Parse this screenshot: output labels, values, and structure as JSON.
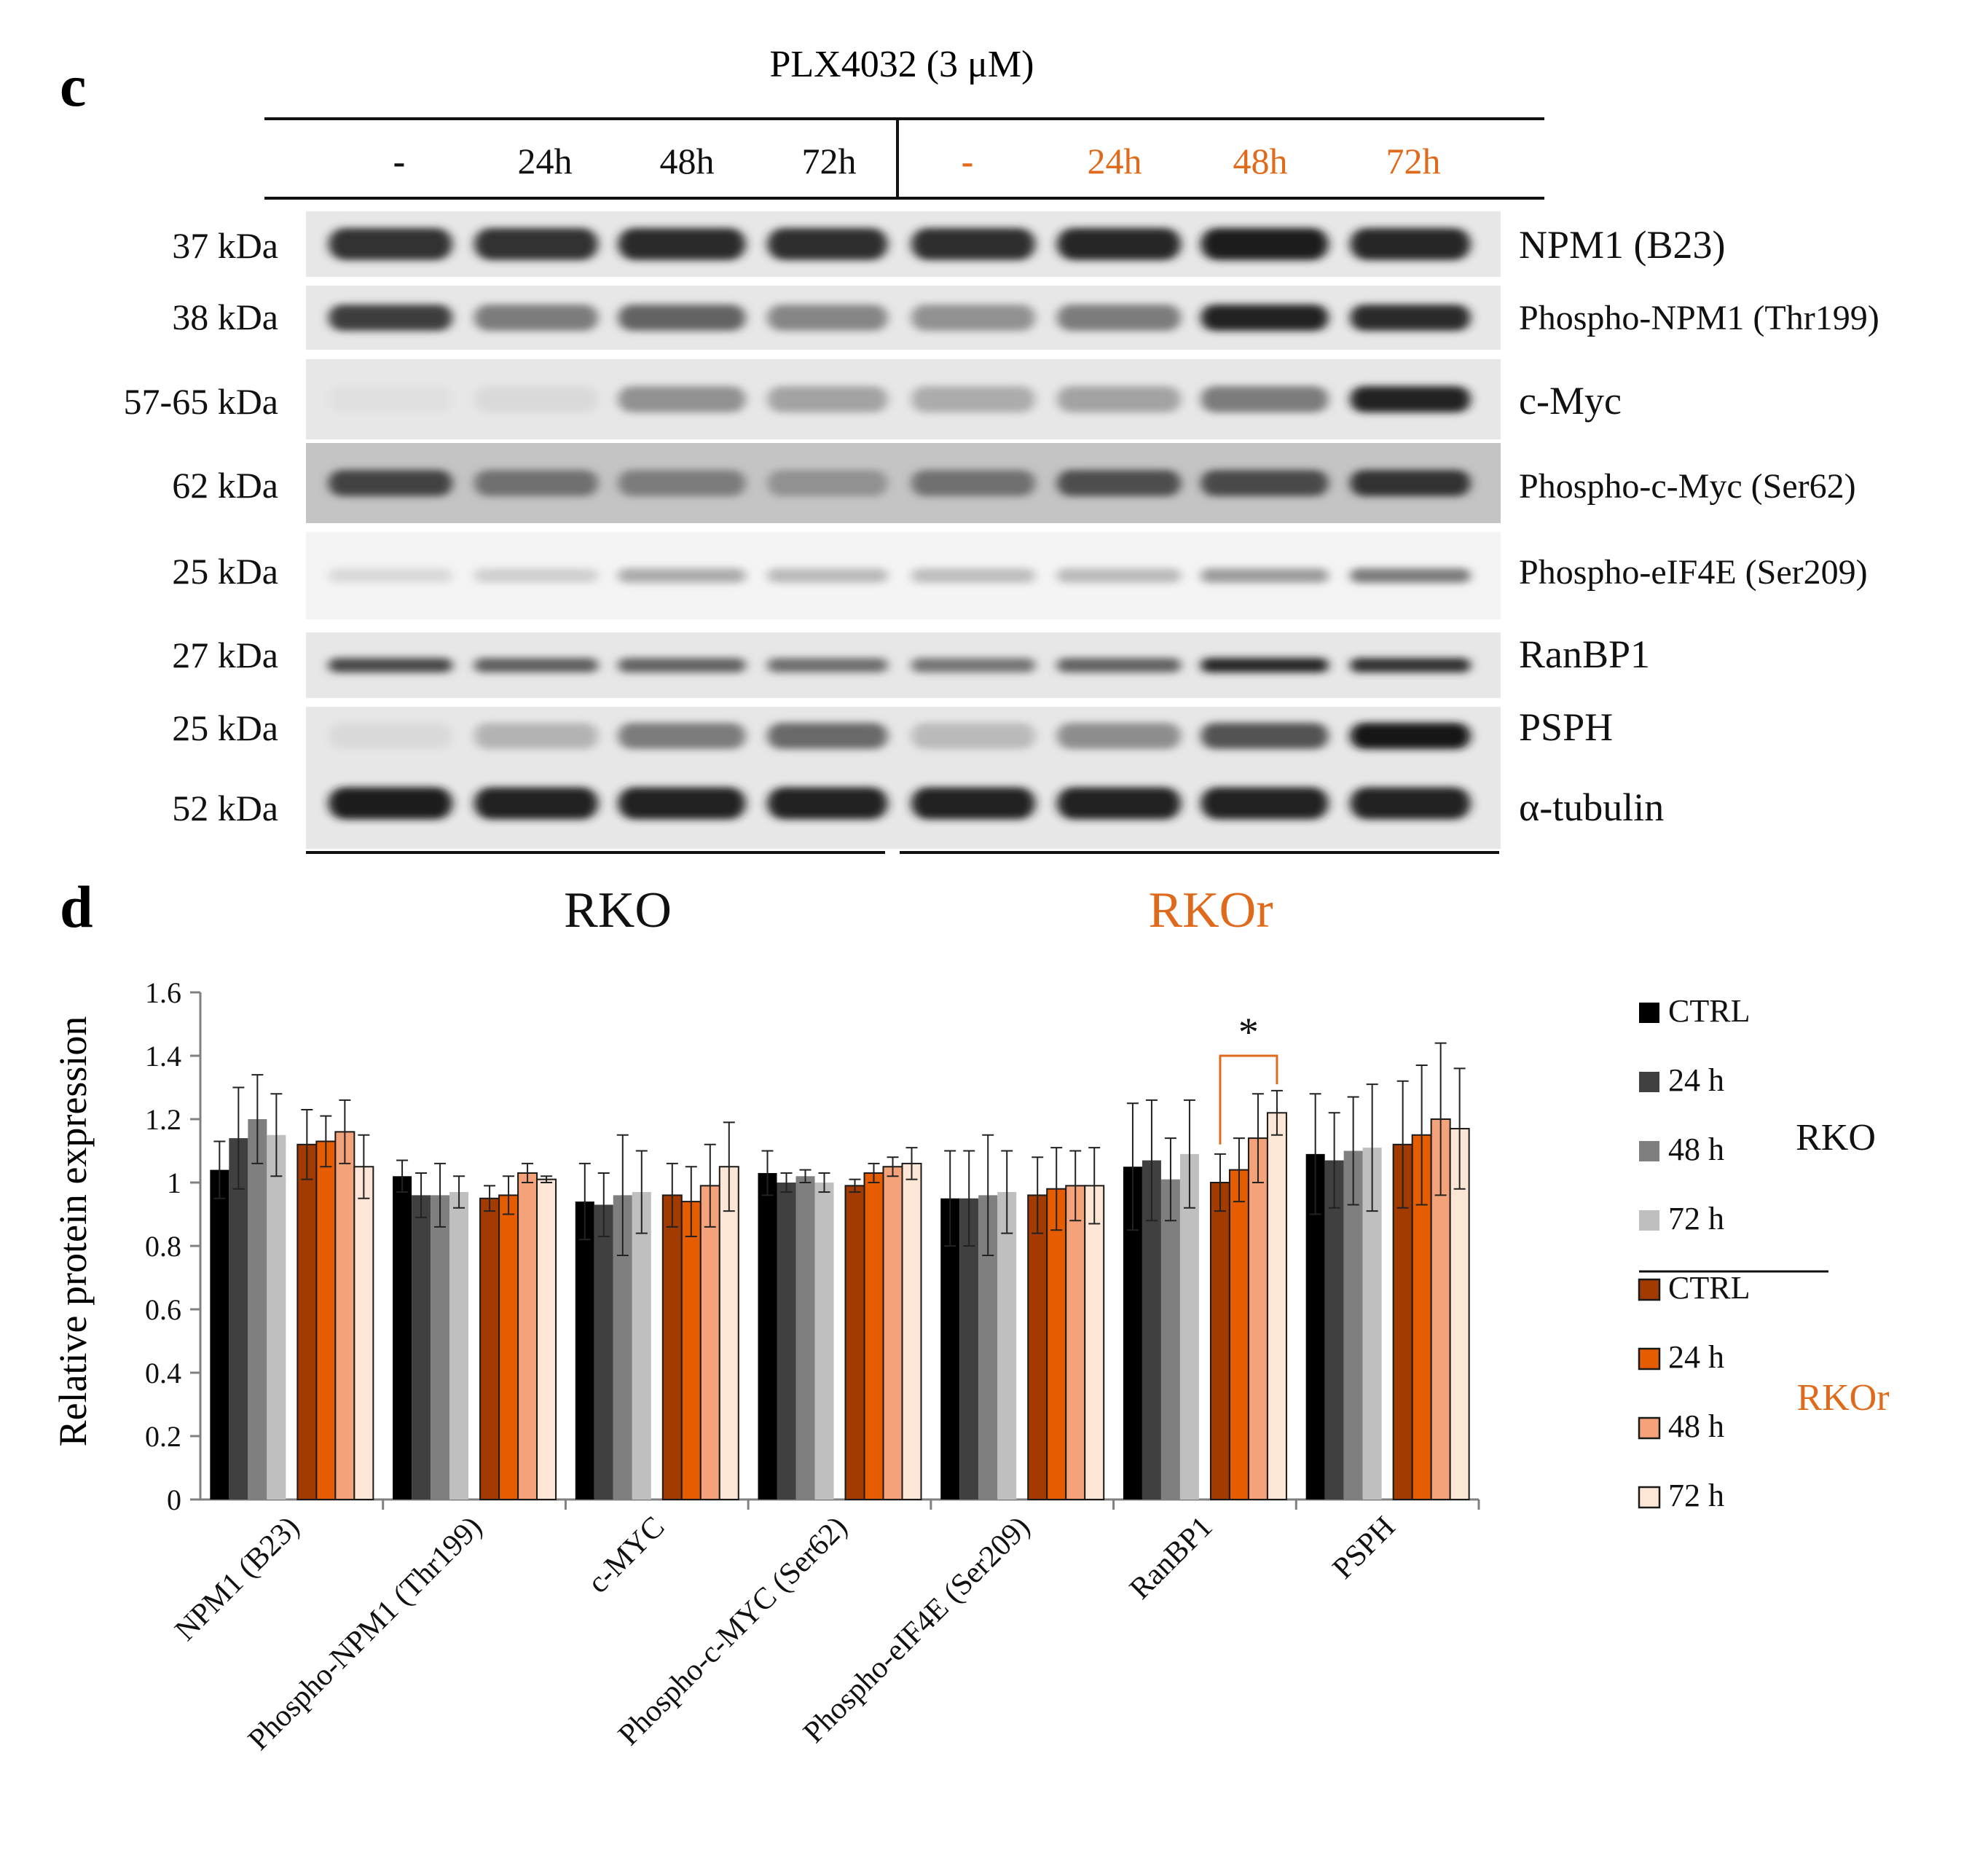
{
  "panel_c": {
    "label": "c",
    "treatment": "PLX4032 (3 μM)",
    "lane_labels_rko": [
      "-",
      "24h",
      "48h",
      "72h"
    ],
    "lane_labels_rkor": [
      "-",
      "24h",
      "48h",
      "72h"
    ],
    "blots": [
      {
        "size": "37 kDa",
        "protein": "NPM1 (B23)",
        "intensity": [
          0.82,
          0.82,
          0.86,
          0.84,
          0.84,
          0.88,
          0.92,
          0.88
        ],
        "band": "dense"
      },
      {
        "size": "38 kDa",
        "protein": "Phospho-NPM1 (Thr199)",
        "intensity": [
          0.78,
          0.5,
          0.6,
          0.45,
          0.4,
          0.5,
          0.9,
          0.85
        ],
        "band": "medium"
      },
      {
        "size": "57-65 kDa",
        "protein": "c-Myc",
        "intensity": [
          0.05,
          0.08,
          0.4,
          0.32,
          0.28,
          0.32,
          0.5,
          0.9
        ],
        "band": "medium"
      },
      {
        "size": "62 kDa",
        "protein": "Phospho-c-Myc  (Ser62)",
        "intensity": [
          0.75,
          0.55,
          0.5,
          0.4,
          0.55,
          0.7,
          0.72,
          0.82
        ],
        "band": "dark-bg"
      },
      {
        "size": "25 kDa",
        "protein": "Phospho-eIF4E (Ser209)",
        "intensity": [
          0.08,
          0.12,
          0.28,
          0.22,
          0.2,
          0.22,
          0.35,
          0.5
        ],
        "band": "thin"
      },
      {
        "size": "27 kDa",
        "protein": "RanBP1",
        "intensity": [
          0.72,
          0.62,
          0.6,
          0.55,
          0.52,
          0.6,
          0.88,
          0.82
        ],
        "band": "thin-dark"
      },
      {
        "size": "25 kDa",
        "protein": "PSPH",
        "intensity": [
          0.08,
          0.25,
          0.5,
          0.58,
          0.22,
          0.42,
          0.68,
          0.95
        ],
        "band": "medium"
      },
      {
        "size": "52 kDa",
        "protein": "α-tubulin",
        "intensity": [
          0.92,
          0.9,
          0.9,
          0.9,
          0.9,
          0.9,
          0.9,
          0.9
        ],
        "band": "dense"
      }
    ],
    "cell_line_rko": "RKO",
    "cell_line_rkor": "RKOr"
  },
  "panel_d": {
    "label": "d"
  },
  "chart_data": {
    "type": "bar",
    "title": "",
    "xlabel": "",
    "ylabel": "Relative protein expression",
    "ylim": [
      0,
      1.6
    ],
    "yticks": [
      "0",
      "0.2",
      "0.4",
      "0.6",
      "0.8",
      "1",
      "1.2",
      "1.4",
      "1.6"
    ],
    "categories": [
      "NPM1 (B23)",
      "Phospho-NPM1 (Thr199)",
      "c-MYC",
      "Phospho-c-MYC (Ser62)",
      "Phospho-eIF4E (Ser209)",
      "RanBP1",
      "PSPH"
    ],
    "series": [
      {
        "name": "CTRL",
        "group": "RKO",
        "color": "#000000",
        "values": [
          1.04,
          1.02,
          0.94,
          1.03,
          0.95,
          1.05,
          1.09
        ],
        "errors": [
          0.09,
          0.05,
          0.12,
          0.07,
          0.15,
          0.2,
          0.19
        ]
      },
      {
        "name": "24 h",
        "group": "RKO",
        "color": "#404040",
        "values": [
          1.14,
          0.96,
          0.93,
          1.0,
          0.95,
          1.07,
          1.07
        ],
        "errors": [
          0.16,
          0.07,
          0.1,
          0.03,
          0.15,
          0.19,
          0.15
        ]
      },
      {
        "name": "48 h",
        "group": "RKO",
        "color": "#7f7f7f",
        "values": [
          1.2,
          0.96,
          0.96,
          1.02,
          0.96,
          1.01,
          1.1
        ],
        "errors": [
          0.14,
          0.1,
          0.19,
          0.02,
          0.19,
          0.13,
          0.17
        ]
      },
      {
        "name": "72 h",
        "group": "RKO",
        "color": "#bfbfbf",
        "values": [
          1.15,
          0.97,
          0.97,
          1.0,
          0.97,
          1.09,
          1.11
        ],
        "errors": [
          0.13,
          0.05,
          0.13,
          0.03,
          0.13,
          0.17,
          0.2
        ]
      },
      {
        "name": "CTRL",
        "group": "RKOr",
        "color": "#a33a00",
        "values": [
          1.12,
          0.95,
          0.96,
          0.99,
          0.96,
          1.0,
          1.12
        ],
        "errors": [
          0.11,
          0.04,
          0.1,
          0.02,
          0.12,
          0.09,
          0.2
        ]
      },
      {
        "name": "24 h",
        "group": "RKOr",
        "color": "#e65c00",
        "values": [
          1.13,
          0.96,
          0.94,
          1.03,
          0.98,
          1.04,
          1.15
        ],
        "errors": [
          0.08,
          0.06,
          0.11,
          0.03,
          0.13,
          0.1,
          0.22
        ]
      },
      {
        "name": "48 h",
        "group": "RKOr",
        "color": "#f4a27a",
        "values": [
          1.16,
          1.03,
          0.99,
          1.05,
          0.99,
          1.14,
          1.2
        ],
        "errors": [
          0.1,
          0.03,
          0.13,
          0.03,
          0.11,
          0.14,
          0.24
        ]
      },
      {
        "name": "72 h",
        "group": "RKOr",
        "color": "#fde6d6",
        "values": [
          1.05,
          1.01,
          1.05,
          1.06,
          0.99,
          1.22,
          1.17
        ],
        "errors": [
          0.1,
          0.01,
          0.14,
          0.05,
          0.12,
          0.07,
          0.19
        ]
      }
    ],
    "annotations": [
      {
        "text": "*",
        "category": "RanBP1",
        "between": [
          "RKOr CTRL",
          "RKOr 72 h"
        ]
      }
    ],
    "legend": {
      "position": "right",
      "group_labels": [
        "RKO",
        "RKOr"
      ]
    },
    "colors": {
      "rko_text": "#111111",
      "rkor_text": "#e06a1b",
      "axis": "#808080"
    }
  }
}
